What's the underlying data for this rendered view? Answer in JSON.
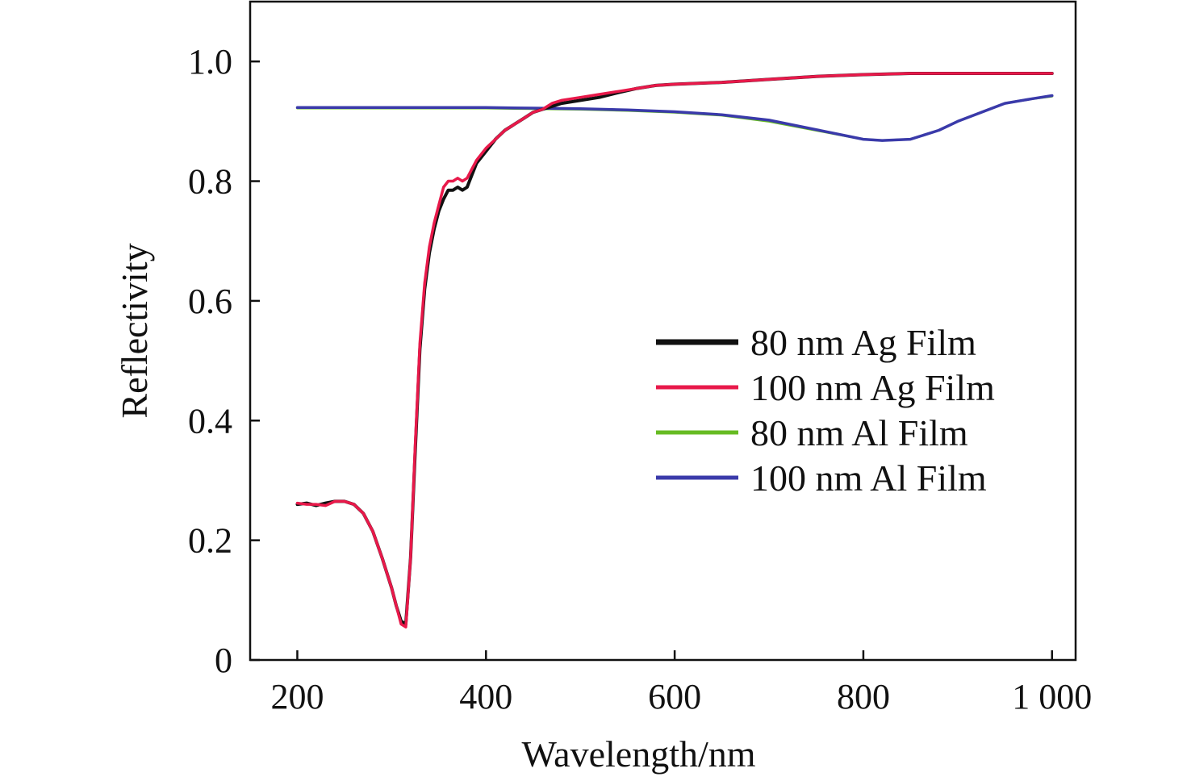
{
  "chart_data": {
    "type": "line",
    "title": "",
    "xlabel": "Wavelength/nm",
    "ylabel": "Reflectivity",
    "xlim": [
      150,
      1025
    ],
    "ylim": [
      0,
      1.1
    ],
    "x_ticks": [
      200,
      400,
      600,
      800,
      1000
    ],
    "x_tick_labels": [
      "200",
      "400",
      "600",
      "800",
      "1 000"
    ],
    "y_ticks": [
      0,
      0.2,
      0.4,
      0.6,
      0.8,
      1.0
    ],
    "y_tick_labels": [
      "0",
      "0.2",
      "0.4",
      "0.6",
      "0.8",
      "1.0"
    ],
    "grid": false,
    "legend_position": "right",
    "series": [
      {
        "name": "80 nm Ag Film",
        "color": "#111111",
        "x": [
          200,
          210,
          220,
          230,
          240,
          250,
          260,
          270,
          280,
          290,
          300,
          305,
          310,
          315,
          320,
          325,
          330,
          335,
          340,
          345,
          350,
          355,
          360,
          365,
          370,
          375,
          380,
          385,
          390,
          400,
          410,
          420,
          430,
          440,
          450,
          460,
          470,
          480,
          500,
          520,
          540,
          560,
          580,
          600,
          650,
          700,
          750,
          800,
          850,
          900,
          950,
          1000
        ],
        "y": [
          0.26,
          0.262,
          0.258,
          0.262,
          0.265,
          0.265,
          0.26,
          0.245,
          0.215,
          0.17,
          0.12,
          0.09,
          0.065,
          0.06,
          0.17,
          0.35,
          0.52,
          0.62,
          0.68,
          0.72,
          0.75,
          0.77,
          0.785,
          0.785,
          0.79,
          0.785,
          0.79,
          0.81,
          0.83,
          0.85,
          0.87,
          0.885,
          0.895,
          0.905,
          0.915,
          0.92,
          0.925,
          0.93,
          0.935,
          0.94,
          0.948,
          0.955,
          0.96,
          0.962,
          0.965,
          0.97,
          0.975,
          0.978,
          0.98,
          0.98,
          0.98,
          0.98
        ]
      },
      {
        "name": "100 nm Ag Film",
        "color": "#e8194a",
        "x": [
          200,
          210,
          220,
          230,
          240,
          250,
          260,
          270,
          280,
          290,
          300,
          305,
          310,
          315,
          320,
          325,
          330,
          335,
          340,
          345,
          350,
          355,
          360,
          365,
          370,
          375,
          380,
          385,
          390,
          400,
          410,
          420,
          430,
          440,
          450,
          460,
          470,
          480,
          500,
          520,
          540,
          560,
          580,
          600,
          650,
          700,
          750,
          800,
          850,
          900,
          950,
          1000
        ],
        "y": [
          0.262,
          0.26,
          0.26,
          0.258,
          0.265,
          0.265,
          0.26,
          0.245,
          0.215,
          0.17,
          0.12,
          0.09,
          0.06,
          0.055,
          0.17,
          0.36,
          0.53,
          0.63,
          0.69,
          0.73,
          0.76,
          0.79,
          0.8,
          0.8,
          0.805,
          0.8,
          0.805,
          0.82,
          0.835,
          0.855,
          0.87,
          0.885,
          0.895,
          0.905,
          0.915,
          0.92,
          0.93,
          0.935,
          0.94,
          0.945,
          0.95,
          0.955,
          0.96,
          0.962,
          0.965,
          0.97,
          0.975,
          0.978,
          0.98,
          0.98,
          0.98,
          0.98
        ]
      },
      {
        "name": "80 nm Al Film",
        "color": "#66bb22",
        "x": [
          200,
          300,
          400,
          450,
          500,
          550,
          600,
          650,
          700,
          750,
          800,
          820,
          850,
          880,
          900,
          950,
          980,
          1000
        ],
        "y": [
          0.922,
          0.922,
          0.922,
          0.921,
          0.92,
          0.918,
          0.915,
          0.91,
          0.9,
          0.885,
          0.87,
          0.868,
          0.87,
          0.885,
          0.9,
          0.93,
          0.938,
          0.942
        ]
      },
      {
        "name": "100 nm Al Film",
        "color": "#3a3aaa",
        "x": [
          200,
          300,
          400,
          450,
          500,
          550,
          600,
          650,
          700,
          750,
          800,
          820,
          850,
          880,
          900,
          950,
          980,
          1000
        ],
        "y": [
          0.923,
          0.923,
          0.923,
          0.922,
          0.921,
          0.919,
          0.916,
          0.911,
          0.902,
          0.886,
          0.87,
          0.868,
          0.87,
          0.885,
          0.9,
          0.93,
          0.938,
          0.943
        ]
      }
    ]
  }
}
